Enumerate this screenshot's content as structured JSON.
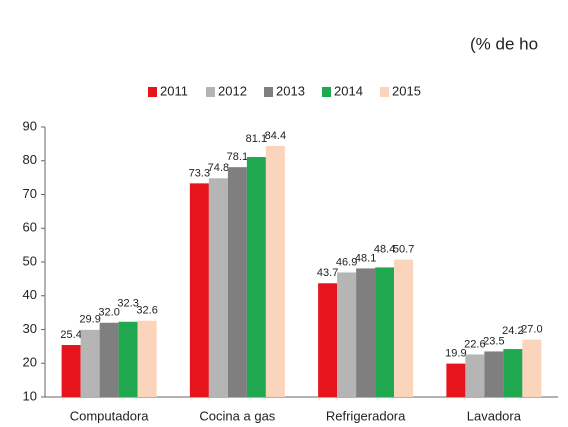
{
  "chart_data": {
    "type": "bar",
    "subtitle": "(% de ho",
    "categories": [
      "Computadora",
      "Cocina a gas",
      "Refrigeradora",
      "Lavadora"
    ],
    "series": [
      {
        "name": "2011",
        "color": "#e8141c",
        "values": [
          25.4,
          73.3,
          43.7,
          19.9
        ],
        "value_labels": [
          "25.4",
          "73.3",
          "43.7",
          "19.9"
        ]
      },
      {
        "name": "2012",
        "color": "#b5b5b5",
        "values": [
          29.9,
          74.8,
          46.9,
          22.6
        ],
        "value_labels": [
          "29.9",
          "74.8",
          "46.9",
          "22.6"
        ]
      },
      {
        "name": "2013",
        "color": "#7f7f7f",
        "values": [
          32.0,
          78.1,
          48.1,
          23.5
        ],
        "value_labels": [
          "32.0",
          "78.1",
          "48.1",
          "23.5"
        ]
      },
      {
        "name": "2014",
        "color": "#1fa84f",
        "values": [
          32.3,
          81.1,
          48.4,
          24.2
        ],
        "value_labels": [
          "32.3",
          "81.1",
          "48.4",
          "24.2"
        ]
      },
      {
        "name": "2015",
        "color": "#fbd4bc",
        "values": [
          32.6,
          84.4,
          50.7,
          27.0
        ],
        "value_labels": [
          "32.6",
          "84.4",
          "50.7",
          "27.0"
        ]
      }
    ],
    "ylim": [
      10,
      90
    ],
    "yticks": [
      10,
      20,
      30,
      40,
      50,
      60,
      70,
      80,
      90
    ],
    "grid": false,
    "legend": "top"
  }
}
